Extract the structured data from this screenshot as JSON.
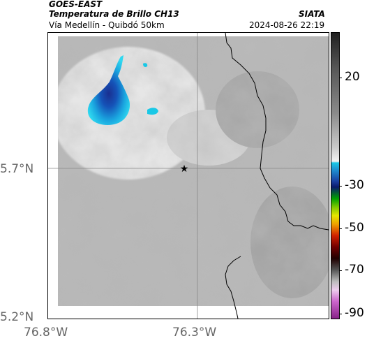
{
  "header": {
    "source": "GOES-EAST",
    "product": "Temperatura de Brillo CH13",
    "route": "Vía Medellín - Quibdó 50km",
    "agency": "SIATA",
    "datetime": "2024-08-26 22:19"
  },
  "map": {
    "lat_ticks": [
      "5.7°N",
      "5.2°N"
    ],
    "lon_ticks": [
      "76.8°W",
      "76.3°W"
    ],
    "marker": "star-marker",
    "colors": {
      "cold_cloud": "#1a3ea0",
      "cyan": "#19c8e6",
      "land_gray": "#b8b8b8",
      "border": "#000000"
    }
  },
  "colorbar": {
    "labels": [
      "20",
      "-30",
      "-50",
      "-70",
      "-90"
    ],
    "unit_hint": ""
  }
}
